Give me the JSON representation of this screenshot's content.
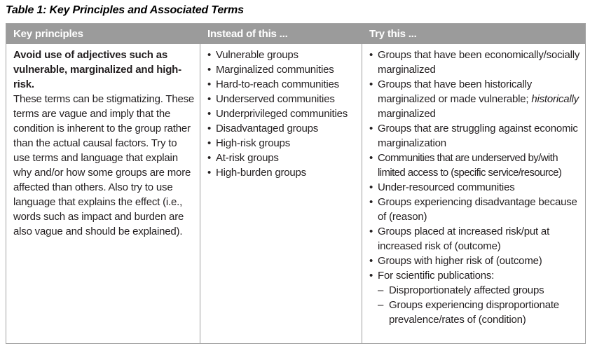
{
  "page": {
    "title": "Table 1: Key Principles and Associated Terms"
  },
  "table": {
    "headers": [
      "Key principles",
      "Instead of this ...",
      "Try this ..."
    ],
    "bullet_char": "•",
    "dash_char": "–",
    "row": {
      "principle": {
        "bold": "Avoid use of adjectives such as vulnerable, marginalized and high-risk.",
        "text": "These terms can be stigmatizing. These terms are vague and imply that the condition is inherent to the group rather than the actual causal factors. Try to use terms and language that explain why and/​or how some groups are more affected than others. Also try to use language that explains the effect (i.e., words such as impact and burden are also vague and should be explained)."
      },
      "instead_of_this": [
        "Vulnerable groups",
        "Marginalized communities",
        "Hard-to-reach communities",
        "Underserved communities",
        "Underprivileged communities",
        "Disadvantaged groups",
        "High-risk groups",
        "At-risk groups",
        "High-burden groups"
      ],
      "try_this": [
        {
          "parts": [
            {
              "text": "Groups that have been economically/​socially marginalized"
            }
          ]
        },
        {
          "parts": [
            {
              "text": "Groups that have been historically marginalized or made vulnerable; "
            },
            {
              "text": "historically",
              "italic": true
            },
            {
              "text": " marginalized"
            }
          ]
        },
        {
          "parts": [
            {
              "text": "Groups that are struggling against economic marginalization"
            }
          ]
        },
        {
          "parts": [
            {
              "text": "Communities that are underserved by/​with limited access to (specific service/​resource)"
            }
          ],
          "condensed": true
        },
        {
          "parts": [
            {
              "text": "Under-resourced communities"
            }
          ]
        },
        {
          "parts": [
            {
              "text": "Groups experiencing disadvantage because of (reason)"
            }
          ]
        },
        {
          "parts": [
            {
              "text": "Groups placed at increased risk/​put at increased risk of (outcome)"
            }
          ]
        },
        {
          "parts": [
            {
              "text": "Groups with higher risk of (outcome)"
            }
          ]
        },
        {
          "parts": [
            {
              "text": "For scientific publications:"
            }
          ],
          "sub": [
            "Disproportionately affected groups",
            "Groups experiencing disproportionate prevalence/​rates of (condition)"
          ]
        }
      ]
    },
    "colors": {
      "header_bg": "#9b9b9b",
      "header_text": "#ffffff",
      "body_text": "#231f20",
      "border": "#a3a3a3",
      "page_bg": "#ffffff"
    }
  }
}
